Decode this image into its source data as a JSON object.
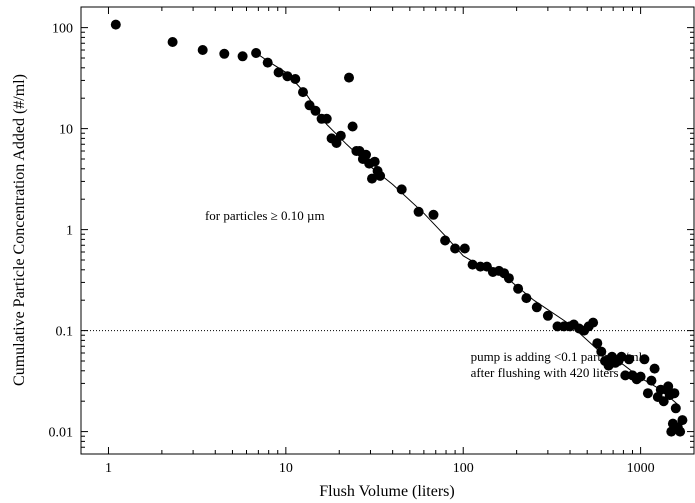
{
  "chart_data": {
    "type": "scatter",
    "title": "",
    "xlabel": "Flush Volume (liters)",
    "ylabel": "Cumulative Particle Concentration Added (#/ml)",
    "xscale": "log",
    "yscale": "log",
    "xlim": [
      0.7,
      2000
    ],
    "ylim": [
      0.006,
      160
    ],
    "x_ticks": [
      {
        "value": 1,
        "label": "1"
      },
      {
        "value": 10,
        "label": "10"
      },
      {
        "value": 100,
        "label": "100"
      },
      {
        "value": 1000,
        "label": "1000"
      }
    ],
    "y_ticks": [
      {
        "value": 0.01,
        "label": "0.01"
      },
      {
        "value": 0.1,
        "label": "0.1"
      },
      {
        "value": 1,
        "label": "1"
      },
      {
        "value": 10,
        "label": "10"
      },
      {
        "value": 100,
        "label": "100"
      }
    ],
    "grid": false,
    "series": [
      {
        "points": [
          [
            1.1,
            107
          ],
          [
            2.3,
            72
          ],
          [
            3.4,
            60
          ],
          [
            4.5,
            55
          ],
          [
            5.7,
            52
          ],
          [
            6.8,
            56
          ],
          [
            7.9,
            45
          ],
          [
            9.1,
            36
          ],
          [
            10.2,
            33
          ],
          [
            11.3,
            31
          ],
          [
            12.5,
            23
          ],
          [
            13.6,
            17
          ],
          [
            14.7,
            15
          ],
          [
            15.9,
            12.5
          ],
          [
            17,
            12.5
          ],
          [
            18.1,
            8
          ],
          [
            19.3,
            7.2
          ],
          [
            20.4,
            8.5
          ],
          [
            22.7,
            32
          ],
          [
            23.8,
            10.5
          ],
          [
            25,
            6
          ],
          [
            26,
            6
          ],
          [
            27.2,
            5
          ],
          [
            28.3,
            5.5
          ],
          [
            29.5,
            4.5
          ],
          [
            30.6,
            3.2
          ],
          [
            31.7,
            4.7
          ],
          [
            32.9,
            3.8
          ],
          [
            34,
            3.4
          ],
          [
            45,
            2.5
          ],
          [
            56,
            1.5
          ],
          [
            68,
            1.4
          ],
          [
            79,
            0.78
          ],
          [
            90,
            0.65
          ],
          [
            102,
            0.65
          ],
          [
            113,
            0.45
          ],
          [
            125,
            0.43
          ],
          [
            136,
            0.43
          ],
          [
            147,
            0.38
          ],
          [
            159,
            0.39
          ],
          [
            170,
            0.37
          ],
          [
            181,
            0.33
          ],
          [
            204,
            0.26
          ],
          [
            227,
            0.21
          ],
          [
            260,
            0.17
          ],
          [
            300,
            0.14
          ],
          [
            340,
            0.11
          ],
          [
            370,
            0.11
          ],
          [
            400,
            0.11
          ],
          [
            420,
            0.115
          ],
          [
            450,
            0.105
          ],
          [
            480,
            0.1
          ],
          [
            510,
            0.11
          ],
          [
            540,
            0.12
          ],
          [
            570,
            0.075
          ],
          [
            600,
            0.062
          ],
          [
            630,
            0.05
          ],
          [
            660,
            0.045
          ],
          [
            690,
            0.055
          ],
          [
            720,
            0.048
          ],
          [
            750,
            0.05
          ],
          [
            780,
            0.055
          ],
          [
            820,
            0.036
          ],
          [
            860,
            0.052
          ],
          [
            900,
            0.036
          ],
          [
            950,
            0.033
          ],
          [
            1000,
            0.035
          ],
          [
            1050,
            0.052
          ],
          [
            1100,
            0.024
          ],
          [
            1150,
            0.032
          ],
          [
            1200,
            0.042
          ],
          [
            1250,
            0.022
          ],
          [
            1300,
            0.026
          ],
          [
            1350,
            0.02
          ],
          [
            1400,
            0.026
          ],
          [
            1430,
            0.028
          ],
          [
            1460,
            0.023
          ],
          [
            1490,
            0.01
          ],
          [
            1520,
            0.012
          ],
          [
            1550,
            0.024
          ],
          [
            1580,
            0.017
          ],
          [
            1620,
            0.011
          ],
          [
            1670,
            0.01
          ],
          [
            1720,
            0.013
          ]
        ]
      }
    ],
    "fit_line": [
      [
        6.8,
        56
      ],
      [
        8,
        46
      ],
      [
        10,
        36
      ],
      [
        13,
        22
      ],
      [
        17,
        11
      ],
      [
        22,
        7
      ],
      [
        30,
        4.2
      ],
      [
        40,
        2.8
      ],
      [
        60,
        1.45
      ],
      [
        80,
        0.85
      ],
      [
        100,
        0.55
      ],
      [
        130,
        0.42
      ],
      [
        170,
        0.35
      ],
      [
        250,
        0.2
      ],
      [
        400,
        0.115
      ],
      [
        600,
        0.06
      ],
      [
        800,
        0.046
      ],
      [
        1000,
        0.034
      ],
      [
        1300,
        0.026
      ],
      [
        1650,
        0.018
      ]
    ],
    "reference_line": {
      "y": 0.1,
      "style": "dotted"
    },
    "annotations": [
      {
        "text": "for particles ≥ 0.10 µm",
        "x": 3.5,
        "y": 1.25
      },
      {
        "lines": [
          "pump is adding <0.1 particles/ml",
          "after flushing with 420 liters"
        ],
        "x": 110,
        "y": 0.05
      }
    ]
  }
}
